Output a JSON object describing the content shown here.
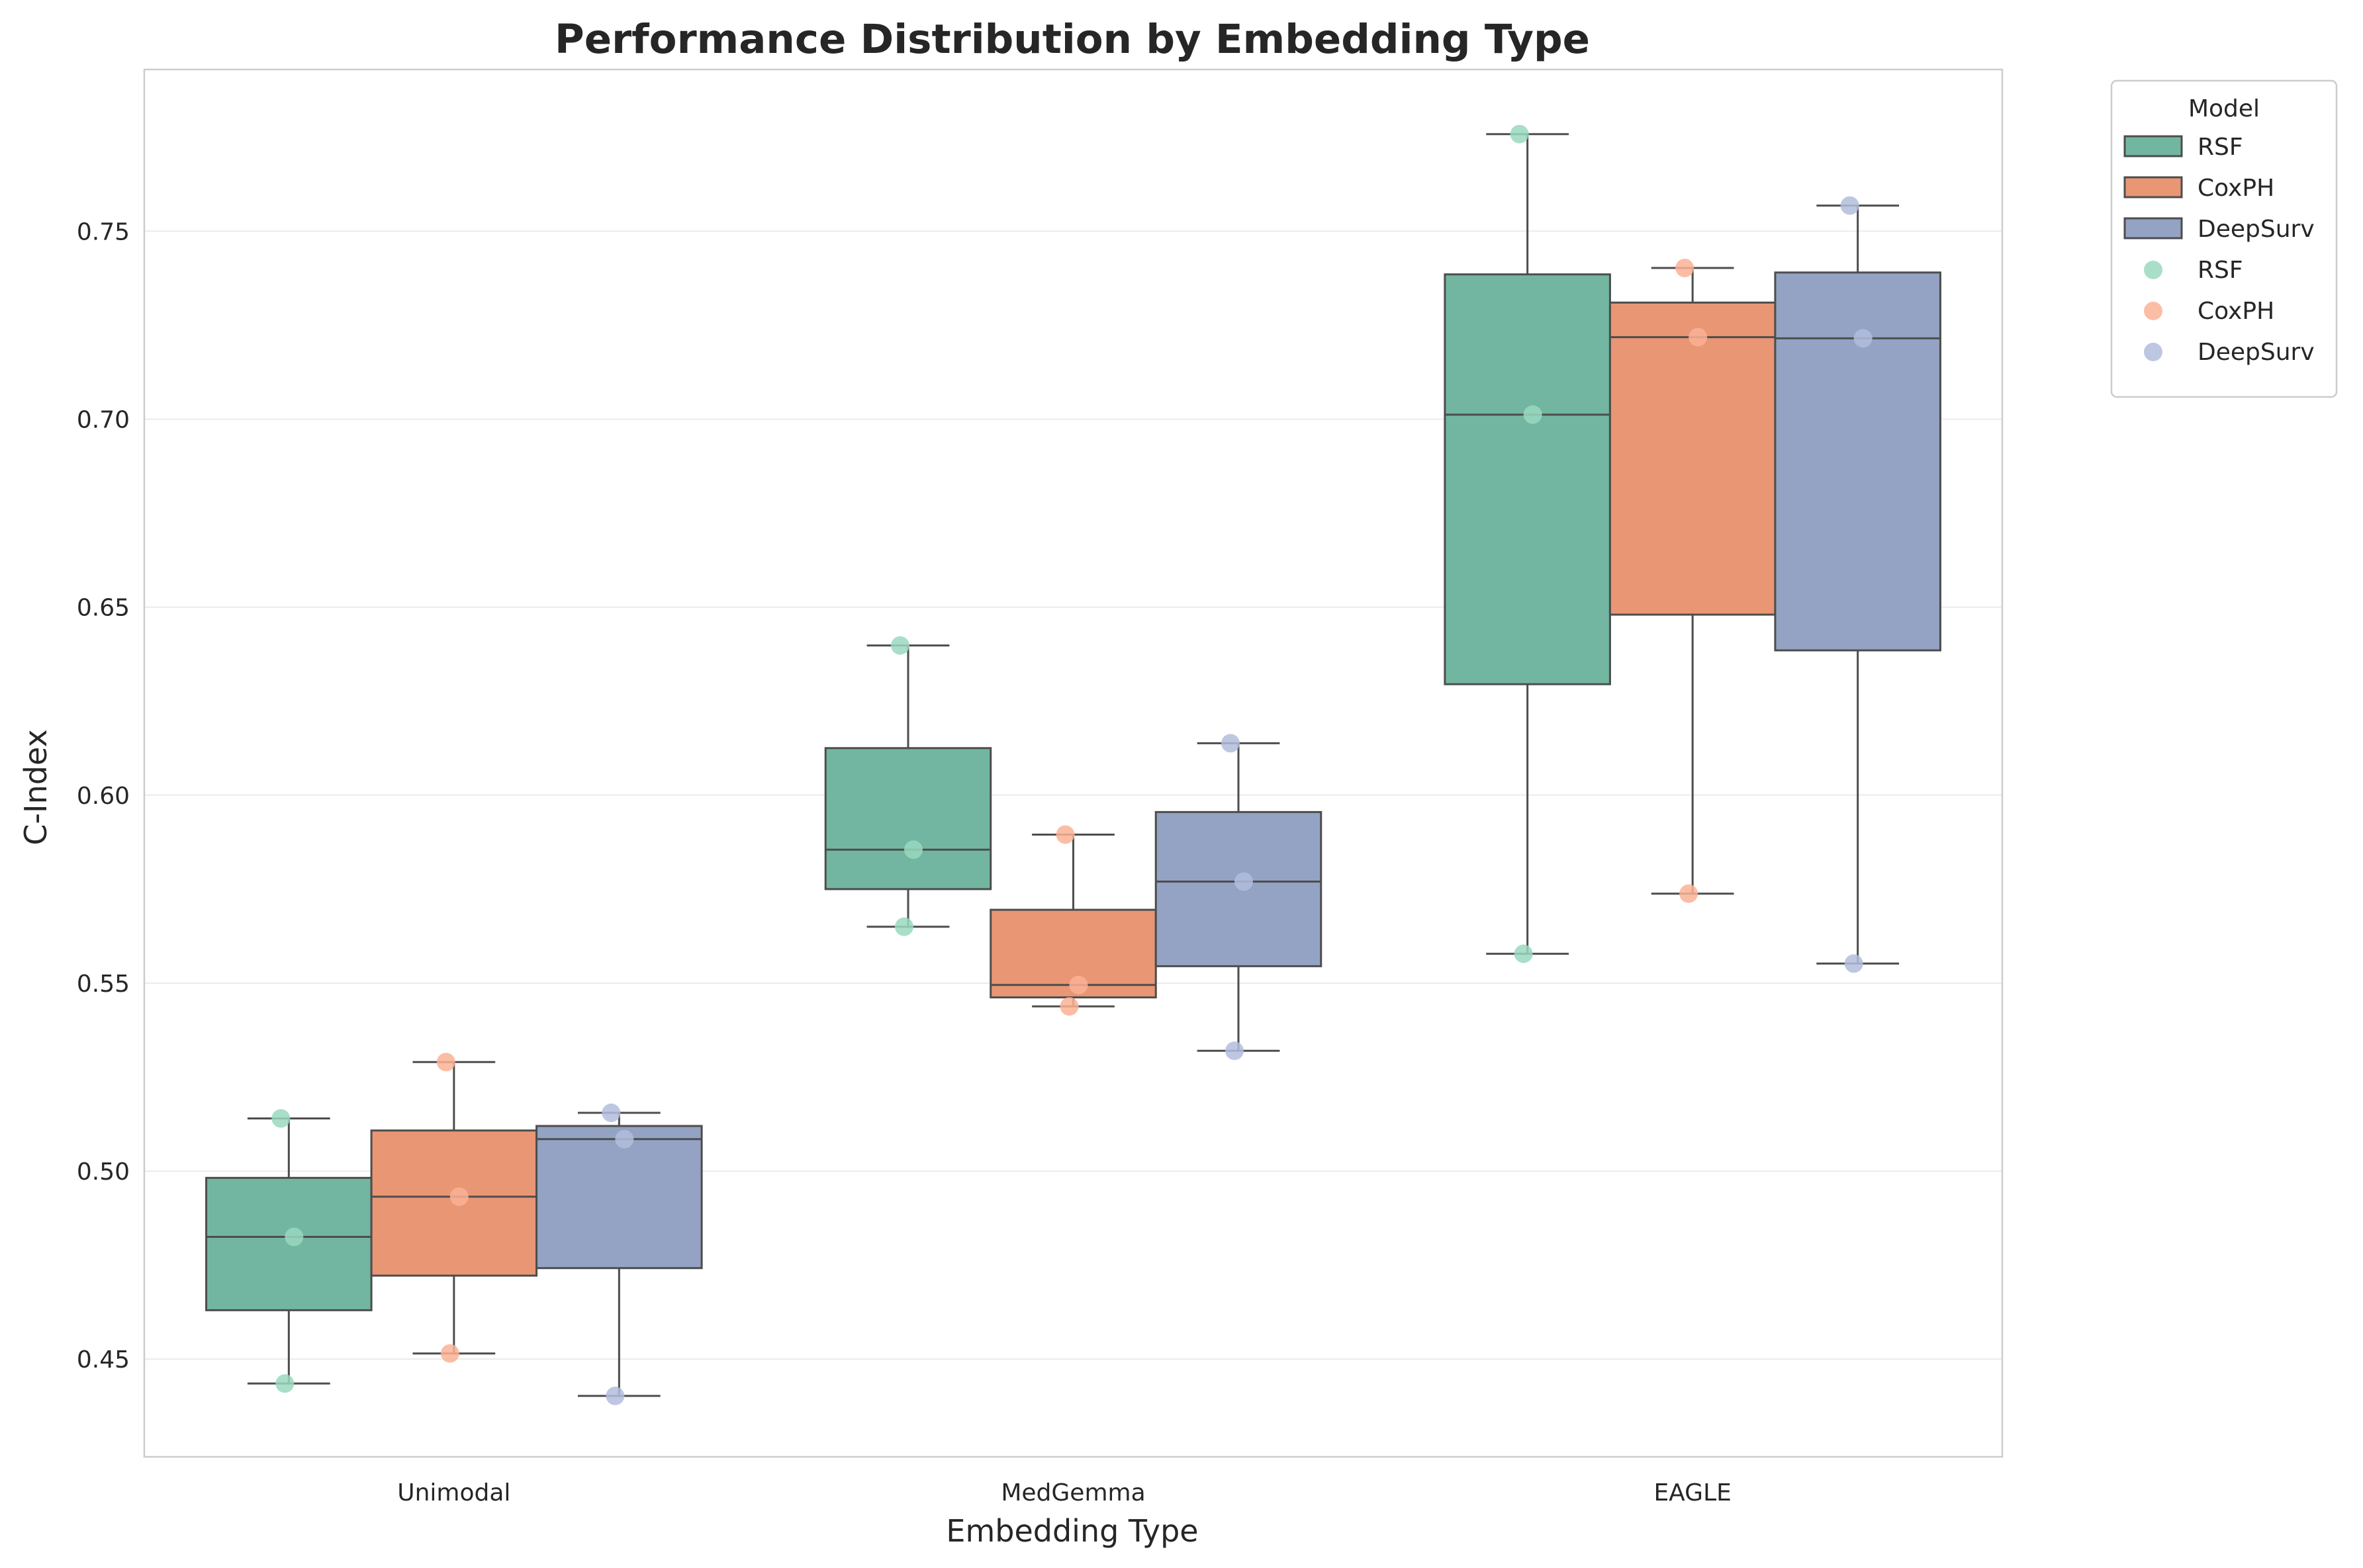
{
  "chart_data": {
    "type": "box",
    "title": "Performance Distribution by Embedding Type",
    "xlabel": "Embedding Type",
    "ylabel": "C-Index",
    "ylim": [
      0.424,
      0.793
    ],
    "yticks": [
      0.45,
      0.5,
      0.55,
      0.6,
      0.65,
      0.7,
      0.75
    ],
    "categories": [
      "Unimodal",
      "MedGemma",
      "EAGLE"
    ],
    "grid": "horizontal",
    "legend": {
      "title": "Model",
      "placement": "outside-top-right",
      "box_entries": [
        "RSF",
        "CoxPH",
        "DeepSurv"
      ],
      "point_entries": [
        "RSF",
        "CoxPH",
        "DeepSurv"
      ]
    },
    "series": [
      {
        "name": "RSF",
        "box_color": "#72b6a1",
        "point_color": "#9ad8c0",
        "boxes": [
          {
            "whisker_low": 0.4435,
            "q1": 0.463,
            "median": 0.4825,
            "q3": 0.4982,
            "whisker_high": 0.514,
            "points": [
              0.514,
              0.4825,
              0.4435
            ]
          },
          {
            "whisker_low": 0.565,
            "q1": 0.575,
            "median": 0.5855,
            "q3": 0.6125,
            "whisker_high": 0.6398,
            "points": [
              0.6398,
              0.5855,
              0.565
            ]
          },
          {
            "whisker_low": 0.5578,
            "q1": 0.6295,
            "median": 0.7012,
            "q3": 0.7385,
            "whisker_high": 0.7758,
            "points": [
              0.7758,
              0.7012,
              0.5578
            ]
          }
        ]
      },
      {
        "name": "CoxPH",
        "box_color": "#e99675",
        "point_color": "#fcb295",
        "boxes": [
          {
            "whisker_low": 0.4515,
            "q1": 0.4722,
            "median": 0.4932,
            "q3": 0.5108,
            "whisker_high": 0.529,
            "points": [
              0.529,
              0.4932,
              0.4515
            ]
          },
          {
            "whisker_low": 0.5438,
            "q1": 0.5462,
            "median": 0.5495,
            "q3": 0.5695,
            "whisker_high": 0.5895,
            "points": [
              0.5895,
              0.5495,
              0.5438
            ]
          },
          {
            "whisker_low": 0.5738,
            "q1": 0.648,
            "median": 0.7218,
            "q3": 0.731,
            "whisker_high": 0.7402,
            "points": [
              0.7402,
              0.7218,
              0.5738
            ]
          }
        ]
      },
      {
        "name": "DeepSurv",
        "box_color": "#94a3c3",
        "point_color": "#b1bddc",
        "boxes": [
          {
            "whisker_low": 0.4402,
            "q1": 0.4742,
            "median": 0.5085,
            "q3": 0.512,
            "whisker_high": 0.5155,
            "points": [
              0.5155,
              0.5085,
              0.4402
            ]
          },
          {
            "whisker_low": 0.532,
            "q1": 0.5545,
            "median": 0.577,
            "q3": 0.5955,
            "whisker_high": 0.6138,
            "points": [
              0.6138,
              0.577,
              0.532
            ]
          },
          {
            "whisker_low": 0.5552,
            "q1": 0.6385,
            "median": 0.7215,
            "q3": 0.739,
            "whisker_high": 0.7568,
            "points": [
              0.7568,
              0.7215,
              0.5552
            ]
          }
        ]
      }
    ]
  }
}
